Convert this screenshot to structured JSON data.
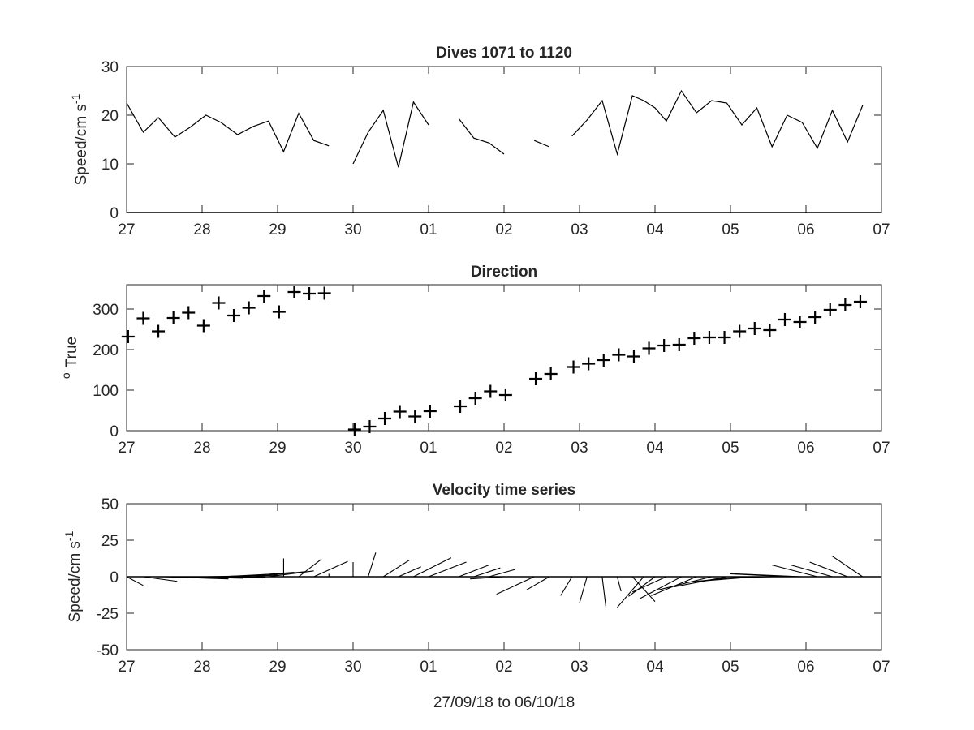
{
  "chart_data": [
    {
      "type": "line",
      "title": "Dives 1071 to 1120",
      "ylabel": "Speed/cm s",
      "ylabel_sup": "-1",
      "xlabel": "",
      "xlim": [
        0,
        10
      ],
      "ylim": [
        0,
        30
      ],
      "yticks": [
        0,
        10,
        20,
        30
      ],
      "xtick_labels": [
        "27",
        "28",
        "29",
        "30",
        "01",
        "02",
        "03",
        "04",
        "05",
        "06",
        "07"
      ],
      "baseline": 0,
      "series": [
        {
          "segments": [
            [
              [
                0.0,
                22.5
              ],
              [
                0.22,
                16.5
              ],
              [
                0.42,
                19.5
              ],
              [
                0.64,
                15.5
              ],
              [
                0.84,
                17.5
              ],
              [
                1.05,
                20.0
              ],
              [
                1.25,
                18.5
              ],
              [
                1.47,
                16.0
              ],
              [
                1.68,
                17.7
              ],
              [
                1.88,
                18.8
              ],
              [
                2.08,
                12.5
              ],
              [
                2.28,
                20.4
              ],
              [
                2.48,
                14.8
              ],
              [
                2.68,
                13.7
              ]
            ],
            [
              [
                3.0,
                10.0
              ],
              [
                3.2,
                16.5
              ],
              [
                3.4,
                21.0
              ],
              [
                3.6,
                9.3
              ],
              [
                3.8,
                22.7
              ],
              [
                4.0,
                18.0
              ]
            ],
            [
              [
                4.4,
                19.3
              ],
              [
                4.6,
                15.3
              ],
              [
                4.8,
                14.3
              ],
              [
                5.0,
                12.0
              ]
            ],
            [
              [
                5.4,
                14.8
              ],
              [
                5.6,
                13.5
              ]
            ],
            [
              [
                5.9,
                15.7
              ],
              [
                6.1,
                19.0
              ],
              [
                6.3,
                23.0
              ],
              [
                6.5,
                12.0
              ],
              [
                6.7,
                24.0
              ],
              [
                6.85,
                23.0
              ],
              [
                7.0,
                21.5
              ],
              [
                7.15,
                18.8
              ],
              [
                7.35,
                25.0
              ],
              [
                7.55,
                20.5
              ],
              [
                7.75,
                23.0
              ],
              [
                7.95,
                22.5
              ],
              [
                8.15,
                18.0
              ],
              [
                8.35,
                21.5
              ],
              [
                8.55,
                13.5
              ],
              [
                8.75,
                20.0
              ],
              [
                8.95,
                18.5
              ],
              [
                9.15,
                13.2
              ],
              [
                9.35,
                21.0
              ],
              [
                9.55,
                14.5
              ],
              [
                9.75,
                22.0
              ]
            ]
          ]
        }
      ]
    },
    {
      "type": "scatter",
      "title": "Direction",
      "ylabel": "True",
      "ylabel_sup": "o",
      "xlabel": "",
      "xlim": [
        0,
        10
      ],
      "ylim": [
        0,
        360
      ],
      "yticks": [
        0,
        100,
        200,
        300
      ],
      "xtick_labels": [
        "27",
        "28",
        "29",
        "30",
        "01",
        "02",
        "03",
        "04",
        "05",
        "06",
        "07"
      ],
      "marker": "+",
      "points": [
        [
          0.02,
          232
        ],
        [
          0.22,
          277
        ],
        [
          0.42,
          245
        ],
        [
          0.62,
          278
        ],
        [
          0.82,
          291
        ],
        [
          1.02,
          259
        ],
        [
          1.22,
          315
        ],
        [
          1.42,
          284
        ],
        [
          1.62,
          303
        ],
        [
          1.82,
          332
        ],
        [
          2.02,
          293
        ],
        [
          2.22,
          342
        ],
        [
          2.42,
          338
        ],
        [
          2.62,
          339
        ],
        [
          3.02,
          3
        ],
        [
          3.22,
          10
        ],
        [
          3.42,
          30
        ],
        [
          3.62,
          47
        ],
        [
          3.82,
          35
        ],
        [
          4.02,
          48
        ],
        [
          4.42,
          60
        ],
        [
          4.62,
          80
        ],
        [
          4.82,
          97
        ],
        [
          5.02,
          88
        ],
        [
          5.42,
          128
        ],
        [
          5.62,
          140
        ],
        [
          5.92,
          157
        ],
        [
          6.12,
          165
        ],
        [
          6.32,
          174
        ],
        [
          6.52,
          187
        ],
        [
          6.72,
          183
        ],
        [
          6.92,
          203
        ],
        [
          7.12,
          210
        ],
        [
          7.32,
          212
        ],
        [
          7.52,
          228
        ],
        [
          7.72,
          230
        ],
        [
          7.92,
          230
        ],
        [
          8.12,
          245
        ],
        [
          8.32,
          252
        ],
        [
          8.52,
          248
        ],
        [
          8.72,
          274
        ],
        [
          8.92,
          268
        ],
        [
          9.12,
          280
        ],
        [
          9.32,
          298
        ],
        [
          9.52,
          310
        ],
        [
          9.72,
          318
        ]
      ]
    },
    {
      "type": "stick",
      "title": "Velocity time series",
      "ylabel": "Speed/cm s",
      "ylabel_sup": "-1",
      "xlabel": "27/09/18 to 06/10/18",
      "xlim": [
        0,
        10
      ],
      "ylim": [
        -50,
        50
      ],
      "yticks": [
        -50,
        -25,
        0,
        25,
        50
      ],
      "xtick_labels": [
        "27",
        "28",
        "29",
        "30",
        "01",
        "02",
        "03",
        "04",
        "05",
        "06",
        "07"
      ],
      "baseline": 0,
      "sticks": [
        [
          0.0,
          0.22,
          -6.0
        ],
        [
          0.22,
          0.45,
          -3.2
        ],
        [
          0.45,
          0.9,
          -1.5
        ],
        [
          0.64,
          0.9,
          -1.0
        ],
        [
          0.84,
          1.0,
          -0.5
        ],
        [
          1.05,
          0.95,
          1.0
        ],
        [
          1.25,
          0.75,
          2.0
        ],
        [
          1.47,
          0.75,
          3.0
        ],
        [
          1.68,
          0.7,
          3.5
        ],
        [
          1.88,
          0.6,
          4.0
        ],
        [
          2.08,
          0.0,
          12.5
        ],
        [
          2.28,
          0.3,
          12.0
        ],
        [
          2.48,
          0.45,
          10.5
        ],
        [
          2.68,
          0.0,
          2.0
        ],
        [
          3.0,
          0.0,
          10.0
        ],
        [
          3.2,
          0.1,
          16.5
        ],
        [
          3.4,
          0.35,
          11.5
        ],
        [
          3.6,
          0.3,
          6.8
        ],
        [
          3.8,
          0.5,
          13.0
        ],
        [
          4.0,
          0.5,
          10.0
        ],
        [
          4.4,
          0.4,
          8.0
        ],
        [
          4.6,
          0.35,
          6.0
        ],
        [
          4.8,
          0.35,
          5.0
        ],
        [
          5.0,
          -0.45,
          -1.5
        ],
        [
          5.4,
          -0.5,
          -12.0
        ],
        [
          5.6,
          -0.3,
          -9.0
        ],
        [
          5.9,
          -0.15,
          -13.0
        ],
        [
          6.1,
          -0.1,
          -18.0
        ],
        [
          6.3,
          0.05,
          -21.0
        ],
        [
          6.5,
          0.05,
          -10.0
        ],
        [
          6.7,
          0.3,
          -17.0
        ],
        [
          6.85,
          -0.35,
          -21.0
        ],
        [
          7.0,
          -0.35,
          -13.5
        ],
        [
          7.15,
          -0.45,
          -10.5
        ],
        [
          7.35,
          -0.55,
          -15.0
        ],
        [
          7.55,
          -0.6,
          -13.0
        ],
        [
          7.75,
          -0.7,
          -9.0
        ],
        [
          7.95,
          -0.7,
          -7.0
        ],
        [
          8.15,
          -0.75,
          -4.0
        ],
        [
          8.35,
          -0.75,
          -3.0
        ],
        [
          8.55,
          -0.7,
          -1.0
        ],
        [
          8.75,
          -0.75,
          2.0
        ],
        [
          8.95,
          -0.9,
          2.0
        ],
        [
          9.15,
          -0.6,
          8.0
        ],
        [
          9.35,
          -0.55,
          8.0
        ],
        [
          9.55,
          -0.5,
          10.0
        ],
        [
          9.75,
          -0.4,
          14.0
        ]
      ]
    }
  ]
}
